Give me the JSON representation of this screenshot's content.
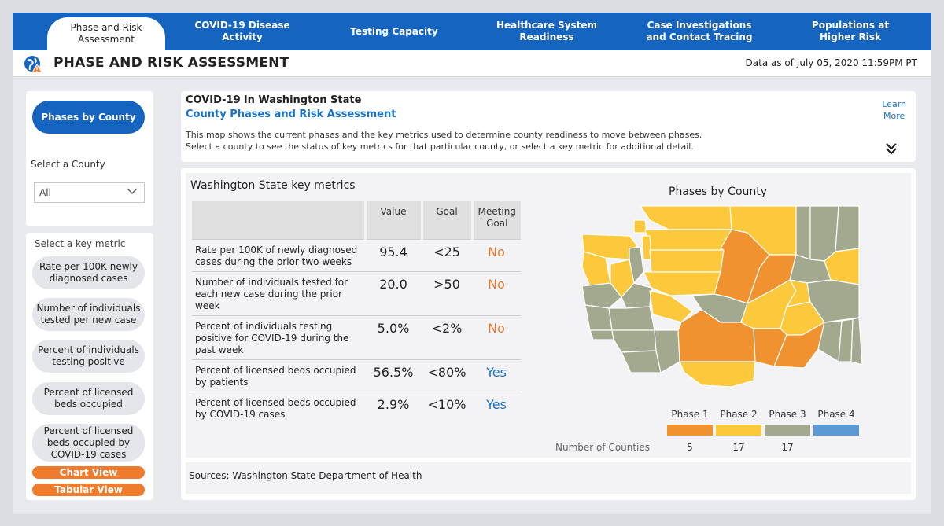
{
  "nav": {
    "tabs": [
      {
        "label": "Phase and Risk\nAssessment",
        "active": true
      },
      {
        "label": "COVID-19 Disease\nActivity",
        "active": false
      },
      {
        "label": "Testing Capacity",
        "active": false
      },
      {
        "label": "Healthcare System\nReadiness",
        "active": false
      },
      {
        "label": "Case Investigations\nand Contact Tracing",
        "active": false
      },
      {
        "label": "Populations at\nHigher Risk",
        "active": false
      }
    ],
    "accent": "#1565c0"
  },
  "header": {
    "title": "PHASE AND RISK ASSESSMENT",
    "as_of": "Data as of July 05, 2020 11:59PM PT",
    "icon": "globe-alert-icon"
  },
  "sidebar": {
    "phases_button": "Phases by County",
    "select_county_label": "Select a County",
    "county_value": "All",
    "key_metric_label": "Select a key metric",
    "metrics": [
      "Rate per 100K newly\ndiagnosed cases",
      "Number of individuals\ntested per new case",
      "Percent of individuals\ntesting positive",
      "Percent of licensed\nbeds occupied",
      "Percent of licensed\nbeds occupied by\nCOVID-19 cases"
    ],
    "chart_view": "Chart View",
    "tabular_view": "Tabular View"
  },
  "info": {
    "heading": "COVID-19 in Washington State",
    "subheading": "County Phases and Risk Assessment",
    "line1": "This map shows the current phases and the key metrics used to determine county readiness to move between phases.",
    "line2": "Select a county to see the status of key metrics for that particular county, or select a key metric for additional detail.",
    "learn_more": "Learn\nMore"
  },
  "key_metrics": {
    "title": "Washington State key metrics",
    "headers": {
      "value": "Value",
      "goal": "Goal",
      "meeting": "Meeting\nGoal"
    },
    "rows": [
      {
        "desc": "Rate per 100K of newly diagnosed cases during the prior two weeks",
        "value": "95.4",
        "goal": "<25",
        "meeting": "No"
      },
      {
        "desc": "Number of individuals tested for each new case during the prior week",
        "value": "20.0",
        "goal": ">50",
        "meeting": "No"
      },
      {
        "desc": "Percent of individuals testing positive for COVID-19 during the past week",
        "value": "5.0%",
        "goal": "<2%",
        "meeting": "No"
      },
      {
        "desc": "Percent of licensed beds occupied by patients",
        "value": "56.5%",
        "goal": "<80%",
        "meeting": "Yes"
      },
      {
        "desc": "Percent of licensed beds occupied by COVID-19 cases",
        "value": "2.9%",
        "goal": "<10%",
        "meeting": "Yes"
      }
    ]
  },
  "map": {
    "title": "Phases by County",
    "number_of_counties_label": "Number of Counties",
    "phases": [
      {
        "label": "Phase 1",
        "count": "5",
        "color": "#f0922f"
      },
      {
        "label": "Phase 2",
        "count": "17",
        "color": "#fbc93b"
      },
      {
        "label": "Phase 3",
        "count": "17",
        "color": "#a3a98f"
      },
      {
        "label": "Phase 4",
        "count": "",
        "color": "#5b9bd5"
      }
    ]
  },
  "sources": "Sources: Washington State Department of Health"
}
